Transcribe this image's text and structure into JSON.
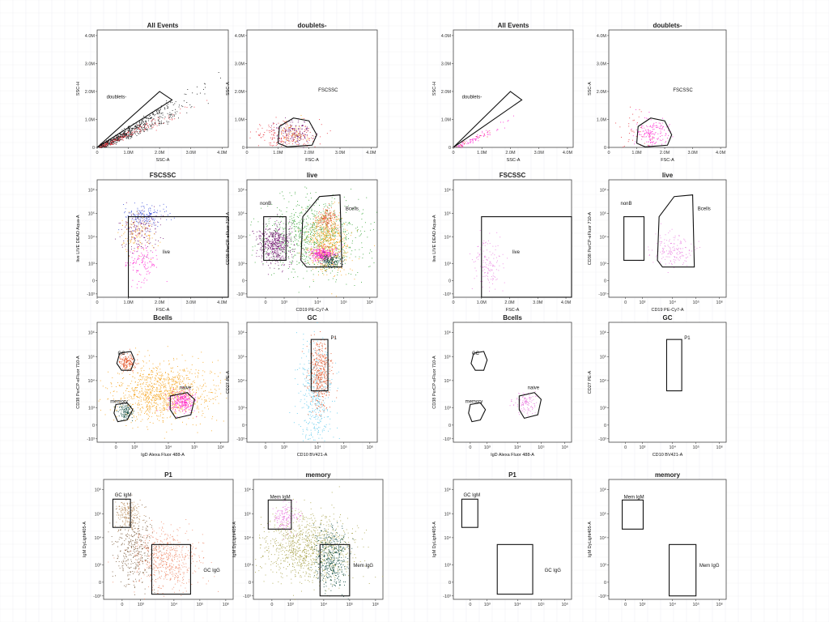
{
  "figure": {
    "description_free": true
  },
  "colors": {
    "black": "#1a1a1a",
    "red": "#e8323c",
    "blue": "#3b4fd8",
    "green": "#3aa63a",
    "purple": "#7b1f7a",
    "orange": "#f5a21a",
    "magenta": "#ff1fd0",
    "darkteal": "#0d4a3f",
    "tomato": "#e4562a",
    "cyan": "#5cc8ec",
    "tan": "#b88a5a",
    "olive": "#a8a24a",
    "pink": "#ea7fe0",
    "brown": "#7a5a3a",
    "salmon": "#ef8a6a"
  },
  "chart_data": [
    {
      "type": "scatter",
      "id": "L-all-events",
      "title": "All Events",
      "xlabel": "SSC-A",
      "ylabel": "SSC-H",
      "xticks": [
        "0",
        "1.0M",
        "2.0M",
        "3.0M",
        "4.0M"
      ],
      "yticks": [
        "0",
        "1.0M",
        "2.0M",
        "3.0M",
        "4.0M"
      ],
      "xlim": [
        0,
        4.2
      ],
      "ylim": [
        0,
        4.2
      ],
      "gates": [
        {
          "label": "doublets-"
        }
      ],
      "populations": [
        {
          "color": "black",
          "count": 650,
          "shape": "diag",
          "spread": 1.0
        },
        {
          "color": "red",
          "count": 180,
          "shape": "diag",
          "spread": 0.5
        }
      ]
    },
    {
      "type": "scatter",
      "id": "L-doublets",
      "title": "doublets-",
      "xlabel": "FSC-A",
      "ylabel": "SSC-A",
      "xticks": [
        "0",
        "1.0M",
        "2.0M",
        "3.0M",
        "4.0M"
      ],
      "yticks": [
        "0",
        "1.0M",
        "2.0M",
        "3.0M",
        "4.0M"
      ],
      "xlim": [
        0,
        4.2
      ],
      "ylim": [
        0,
        4.2
      ],
      "gates": [
        {
          "label": "FSCSSC"
        }
      ],
      "populations": [
        {
          "color": "red",
          "count": 200,
          "cx": 1.2,
          "cy": 0.4,
          "sx": 0.55,
          "sy": 0.25
        },
        {
          "color": "purple",
          "count": 180,
          "cx": 1.5,
          "cy": 0.55,
          "sx": 0.3,
          "sy": 0.2
        },
        {
          "color": "orange",
          "count": 60,
          "cx": 1.5,
          "cy": 0.55,
          "sx": 0.25,
          "sy": 0.2
        }
      ]
    },
    {
      "type": "scatter",
      "id": "L-fscssc",
      "title": "FSCSSC",
      "xlabel": "FSC-A",
      "ylabel": "live LIVE DEAD Aqua-A",
      "xticks": [
        "0",
        "1.0M",
        "2.0M",
        "3.0M",
        "4.0M"
      ],
      "yticks": [
        "-10³",
        "0",
        "10³",
        "10⁴",
        "10⁵",
        "10⁶"
      ],
      "xlim": [
        0,
        4.2
      ],
      "ylim": [
        -1,
        6
      ],
      "gates": [
        {
          "label": "live"
        }
      ],
      "populations": [
        {
          "color": "blue",
          "count": 160,
          "cx": 1.5,
          "cy": 3.9,
          "sx": 0.35,
          "sy": 0.35
        },
        {
          "color": "purple",
          "count": 160,
          "cx": 1.4,
          "cy": 3.0,
          "sx": 0.3,
          "sy": 0.6
        },
        {
          "color": "orange",
          "count": 120,
          "cx": 1.3,
          "cy": 2.8,
          "sx": 0.3,
          "sy": 0.6
        },
        {
          "color": "magenta",
          "count": 120,
          "cx": 1.4,
          "cy": 1.1,
          "sx": 0.25,
          "sy": 0.6
        }
      ]
    },
    {
      "type": "scatter",
      "id": "L-live",
      "title": "live",
      "xlabel": "CD19 PE-Cy7-A",
      "ylabel": "CD38 PerCP-eFluor 710-A",
      "xticks": [
        "0",
        "10³",
        "10⁴",
        "10⁵",
        "10⁶"
      ],
      "yticks": [
        "-10³",
        "0",
        "10³",
        "10⁴",
        "10⁵",
        "10⁶"
      ],
      "xlim": [
        -1,
        6
      ],
      "ylim": [
        -1,
        6
      ],
      "gates": [
        {
          "label": "nonB"
        },
        {
          "label": "Bcells"
        }
      ],
      "populations": [
        {
          "color": "green",
          "count": 900,
          "cx": 2.4,
          "cy": 2.6,
          "sx": 1.4,
          "sy": 1.1
        },
        {
          "color": "purple",
          "count": 520,
          "cx": 0.5,
          "cy": 2.2,
          "sx": 0.45,
          "sy": 0.55
        },
        {
          "color": "orange",
          "count": 650,
          "cx": 3.3,
          "cy": 2.2,
          "sx": 0.55,
          "sy": 0.9
        },
        {
          "color": "tomato",
          "count": 160,
          "cx": 3.3,
          "cy": 3.7,
          "sx": 0.3,
          "sy": 0.3
        },
        {
          "color": "magenta",
          "count": 280,
          "cx": 3.1,
          "cy": 1.6,
          "sx": 0.35,
          "sy": 0.22
        },
        {
          "color": "darkteal",
          "count": 160,
          "cx": 3.5,
          "cy": 1.2,
          "sx": 0.3,
          "sy": 0.2
        }
      ]
    },
    {
      "type": "scatter",
      "id": "L-bcells",
      "title": "Bcells",
      "xlabel": "IgD Alexa Fluor 488-A",
      "ylabel": "CD38 PerCP-eFluor 710-A",
      "xticks": [
        "0",
        "10³",
        "10⁴",
        "10⁵",
        "10⁶"
      ],
      "yticks": [
        "-10³",
        "0",
        "10³",
        "10⁴",
        "10⁵",
        "10⁶"
      ],
      "xlim": [
        -1,
        6
      ],
      "ylim": [
        -1,
        6
      ],
      "gates": [
        {
          "label": "GC"
        },
        {
          "label": "memory"
        },
        {
          "label": "naive"
        }
      ],
      "populations": [
        {
          "color": "orange",
          "count": 1100,
          "cx": 2.5,
          "cy": 1.9,
          "sx": 1.3,
          "sy": 0.8
        },
        {
          "color": "tomato",
          "count": 170,
          "cx": 0.6,
          "cy": 3.7,
          "sx": 0.22,
          "sy": 0.25
        },
        {
          "color": "magenta",
          "count": 260,
          "cx": 3.5,
          "cy": 1.4,
          "sx": 0.35,
          "sy": 0.3
        },
        {
          "color": "darkteal",
          "count": 110,
          "cx": 0.5,
          "cy": 0.8,
          "sx": 0.2,
          "sy": 0.22
        }
      ]
    },
    {
      "type": "scatter",
      "id": "L-gc",
      "title": "GC",
      "xlabel": "CD10 BV421-A",
      "ylabel": "CD27 PE-A",
      "xticks": [
        "0",
        "10³",
        "10⁴",
        "10⁵",
        "10⁶"
      ],
      "yticks": [
        "-10³",
        "0",
        "10³",
        "10⁴",
        "10⁵",
        "10⁶"
      ],
      "xlim": [
        -1,
        6
      ],
      "ylim": [
        -1,
        6
      ],
      "gates": [
        {
          "label": "P1"
        }
      ],
      "populations": [
        {
          "color": "cyan",
          "count": 420,
          "cx": 2.7,
          "cy": 1.5,
          "sx": 0.45,
          "sy": 1.6
        },
        {
          "color": "tomato",
          "count": 420,
          "cx": 2.9,
          "cy": 3.0,
          "sx": 0.3,
          "sy": 1.0
        }
      ]
    },
    {
      "type": "scatter",
      "id": "L-p1",
      "title": "P1",
      "xlabel": "",
      "ylabel": "IgM DyLight405-A",
      "xticks": [
        "0",
        "10³",
        "10⁴",
        "10⁵",
        "10⁶"
      ],
      "yticks": [
        "-10³",
        "0",
        "10³",
        "10⁴",
        "10⁵",
        "10⁶"
      ],
      "xlim": [
        -1,
        6
      ],
      "ylim": [
        -1,
        6
      ],
      "gates": [
        {
          "label": "GC IgM"
        },
        {
          "label": "GC IgG"
        }
      ],
      "populations": [
        {
          "color": "brown",
          "count": 380,
          "cx": 0.7,
          "cy": 1.9,
          "sx": 0.55,
          "sy": 1.1
        },
        {
          "color": "salmon",
          "count": 560,
          "cx": 2.4,
          "cy": 1.4,
          "sx": 0.9,
          "sy": 0.9
        },
        {
          "color": "tan",
          "count": 180,
          "cx": 0.3,
          "cy": 4.0,
          "sx": 0.35,
          "sy": 0.5
        }
      ]
    },
    {
      "type": "scatter",
      "id": "L-memory",
      "title": "memory",
      "xlabel": "",
      "ylabel": "IgM DyLight405-A",
      "xticks": [
        "0",
        "10³",
        "10⁴",
        "10⁵",
        "10⁶"
      ],
      "yticks": [
        "-10³",
        "0",
        "10³",
        "10⁴",
        "10⁵",
        "10⁶"
      ],
      "xlim": [
        -1,
        6
      ],
      "ylim": [
        -1,
        6
      ],
      "gates": [
        {
          "label": "Mem IgM"
        },
        {
          "label": "Mem IgG"
        }
      ],
      "populations": [
        {
          "color": "olive",
          "count": 1000,
          "cx": 1.9,
          "cy": 2.0,
          "sx": 1.3,
          "sy": 1.0
        },
        {
          "color": "pink",
          "count": 160,
          "cx": 0.7,
          "cy": 3.8,
          "sx": 0.35,
          "sy": 0.45
        },
        {
          "color": "darkteal",
          "count": 420,
          "cx": 3.2,
          "cy": 1.4,
          "sx": 0.45,
          "sy": 0.9
        }
      ]
    },
    {
      "type": "scatter",
      "id": "R-all-events",
      "title": "All Events",
      "xlabel": "SSC-A",
      "ylabel": "SSC-H",
      "xticks": [
        "0",
        "1.0M",
        "2.0M",
        "3.0M",
        "4.0M"
      ],
      "yticks": [
        "0",
        "1.0M",
        "2.0M",
        "3.0M",
        "4.0M"
      ],
      "xlim": [
        0,
        4.2
      ],
      "ylim": [
        0,
        4.2
      ],
      "gates": [
        {
          "label": "doublets-"
        }
      ],
      "populations": [
        {
          "color": "magenta",
          "count": 90,
          "shape": "diag",
          "spread": 0.35
        },
        {
          "color": "red",
          "count": 15,
          "shape": "diag",
          "spread": 0.3
        }
      ]
    },
    {
      "type": "scatter",
      "id": "R-doublets",
      "title": "doublets-",
      "xlabel": "FSC-A",
      "ylabel": "SSC-A",
      "xticks": [
        "0",
        "1.0M",
        "2.0M",
        "3.0M",
        "4.0M"
      ],
      "yticks": [
        "0",
        "1.0M",
        "2.0M",
        "3.0M",
        "4.0M"
      ],
      "xlim": [
        0,
        4.2
      ],
      "ylim": [
        0,
        4.2
      ],
      "gates": [
        {
          "label": "FSCSSC"
        }
      ],
      "populations": [
        {
          "color": "magenta",
          "count": 160,
          "cx": 1.5,
          "cy": 0.55,
          "sx": 0.3,
          "sy": 0.25
        },
        {
          "color": "red",
          "count": 35,
          "cx": 0.9,
          "cy": 0.7,
          "sx": 0.35,
          "sy": 0.3
        }
      ]
    },
    {
      "type": "scatter",
      "id": "R-fscssc",
      "title": "FSCSSC",
      "xlabel": "FSC-A",
      "ylabel": "live LIVE DEAD Aqua-A",
      "xticks": [
        "0",
        "1.0M",
        "2.0M",
        "3.0M",
        "4.0M"
      ],
      "yticks": [
        "-10³",
        "0",
        "10³",
        "10⁴",
        "10⁵",
        "10⁶"
      ],
      "xlim": [
        0,
        4.2
      ],
      "ylim": [
        -1,
        6
      ],
      "gates": [
        {
          "label": "live"
        }
      ],
      "populations": [
        {
          "color": "pink",
          "count": 140,
          "cx": 1.2,
          "cy": 1.0,
          "sx": 0.25,
          "sy": 0.8
        }
      ]
    },
    {
      "type": "scatter",
      "id": "R-live",
      "title": "live",
      "xlabel": "CD19 PE-Cy7-A",
      "ylabel": "CD38 PerCP-eFluor 710-A",
      "xticks": [
        "0",
        "10³",
        "10⁴",
        "10⁵",
        "10⁶"
      ],
      "yticks": [
        "-10³",
        "0",
        "10³",
        "10⁴",
        "10⁵",
        "10⁶"
      ],
      "xlim": [
        -1,
        6
      ],
      "ylim": [
        -1,
        6
      ],
      "gates": [
        {
          "label": "nonB"
        },
        {
          "label": "Bcells"
        }
      ],
      "populations": [
        {
          "color": "pink",
          "count": 160,
          "cx": 2.7,
          "cy": 1.8,
          "sx": 0.6,
          "sy": 0.5
        }
      ]
    },
    {
      "type": "scatter",
      "id": "R-bcells",
      "title": "Bcells",
      "xlabel": "IgD Alexa Fluor 488-A",
      "ylabel": "CD38 PerCP-eFluor 710-A",
      "xticks": [
        "0",
        "10³",
        "10⁴",
        "10⁵",
        "10⁶"
      ],
      "yticks": [
        "-10³",
        "0",
        "10³",
        "10⁴",
        "10⁵",
        "10⁶"
      ],
      "xlim": [
        -1,
        6
      ],
      "ylim": [
        -1,
        6
      ],
      "gates": [
        {
          "label": "GC"
        },
        {
          "label": "memory"
        },
        {
          "label": "naive"
        }
      ],
      "populations": [
        {
          "color": "pink",
          "count": 120,
          "cx": 3.3,
          "cy": 1.3,
          "sx": 0.35,
          "sy": 0.3
        }
      ]
    },
    {
      "type": "scatter",
      "id": "R-gc",
      "title": "GC",
      "xlabel": "CD10 BV421-A",
      "ylabel": "CD27 PE-A",
      "xticks": [
        "0",
        "10³",
        "10⁴",
        "10⁵",
        "10⁶"
      ],
      "yticks": [
        "-10³",
        "0",
        "10³",
        "10⁴",
        "10⁵",
        "10⁶"
      ],
      "xlim": [
        -1,
        6
      ],
      "ylim": [
        -1,
        6
      ],
      "gates": [
        {
          "label": "P1"
        }
      ],
      "populations": []
    },
    {
      "type": "scatter",
      "id": "R-p1",
      "title": "P1",
      "xlabel": "",
      "ylabel": "IgM DyLight405-A",
      "xticks": [
        "0",
        "10³",
        "10⁴",
        "10⁵",
        "10⁶"
      ],
      "yticks": [
        "-10³",
        "0",
        "10³",
        "10⁴",
        "10⁵",
        "10⁶"
      ],
      "xlim": [
        -1,
        6
      ],
      "ylim": [
        -1,
        6
      ],
      "gates": [
        {
          "label": "GC IgM"
        },
        {
          "label": "GC IgG"
        }
      ],
      "populations": []
    },
    {
      "type": "scatter",
      "id": "R-memory",
      "title": "memory",
      "xlabel": "",
      "ylabel": "IgM DyLight405-A",
      "xticks": [
        "0",
        "10³",
        "10⁴",
        "10⁵",
        "10⁶"
      ],
      "yticks": [
        "-10³",
        "0",
        "10³",
        "10⁴",
        "10⁵",
        "10⁶"
      ],
      "xlim": [
        -1,
        6
      ],
      "ylim": [
        -1,
        6
      ],
      "gates": [
        {
          "label": "Mem IgM"
        },
        {
          "label": "Mem IgG"
        }
      ],
      "populations": []
    }
  ]
}
